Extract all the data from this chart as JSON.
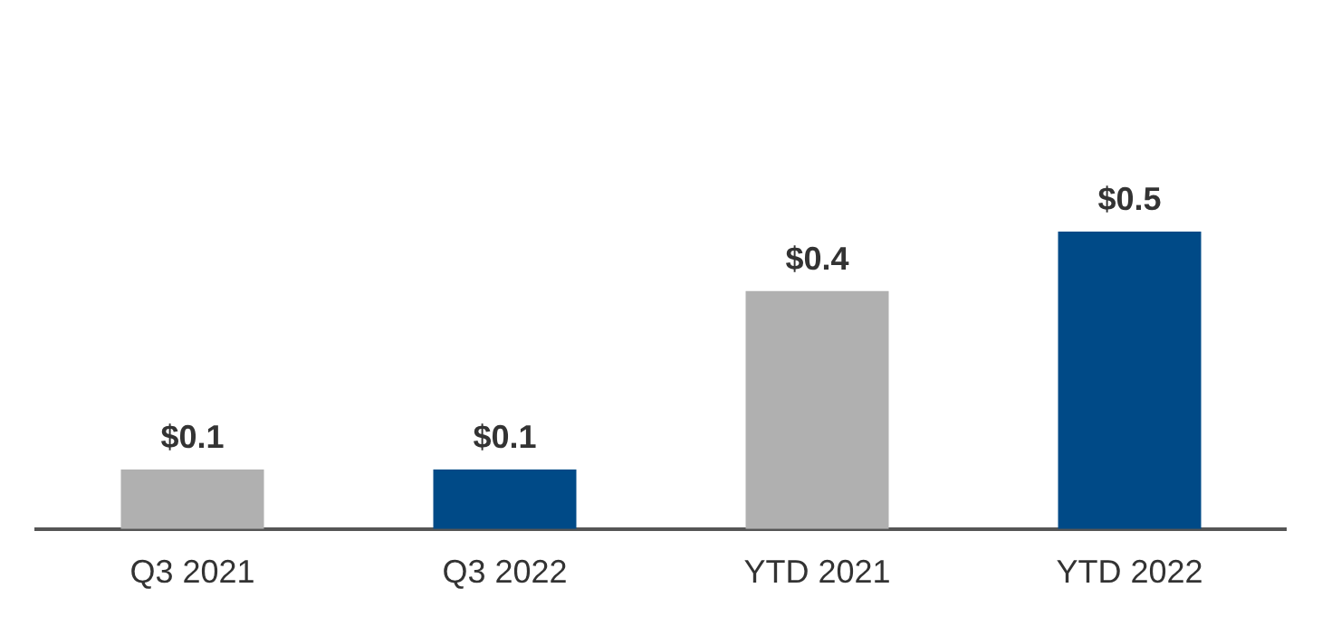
{
  "chart_data": {
    "type": "bar",
    "categories": [
      "Q3 2021",
      "Q3 2022",
      "YTD 2021",
      "YTD 2022"
    ],
    "values": [
      0.1,
      0.1,
      0.4,
      0.5
    ],
    "colors": [
      "#b0b0b0",
      "#004a87",
      "#b0b0b0",
      "#004a87"
    ],
    "value_labels": [
      "$0.1",
      "$0.1",
      "$0.4",
      "$0.5"
    ],
    "grid": false,
    "legend": false
  }
}
